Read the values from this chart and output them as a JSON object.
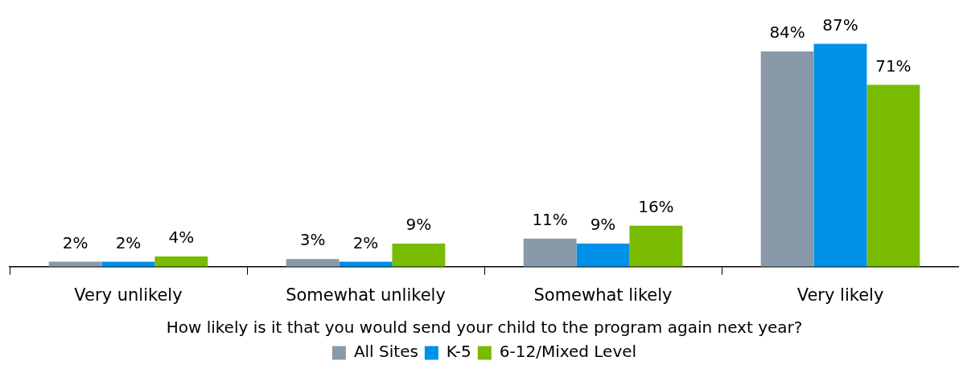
{
  "chart_data": {
    "type": "bar",
    "xlabel": "How likely is it that you would send your child to the program again next year?",
    "categories": [
      "Very unlikely",
      "Somewhat unlikely",
      "Somewhat likely",
      "Very likely"
    ],
    "series": [
      {
        "name": "All Sites",
        "color": "#8a99aa",
        "values": [
          2,
          3,
          11,
          84
        ],
        "value_labels": [
          "2%",
          "3%",
          "11%",
          "84%"
        ]
      },
      {
        "name": "K-5",
        "color": "#0090e8",
        "values": [
          2,
          2,
          9,
          87
        ],
        "value_labels": [
          "2%",
          "2%",
          "9%",
          "87%"
        ]
      },
      {
        "name": "6-12/Mixed Level",
        "color": "#78bb00",
        "values": [
          4,
          9,
          16,
          71
        ],
        "value_labels": [
          "4%",
          "9%",
          "16%",
          "71%"
        ]
      }
    ],
    "grid": false,
    "legend": "bottom"
  }
}
